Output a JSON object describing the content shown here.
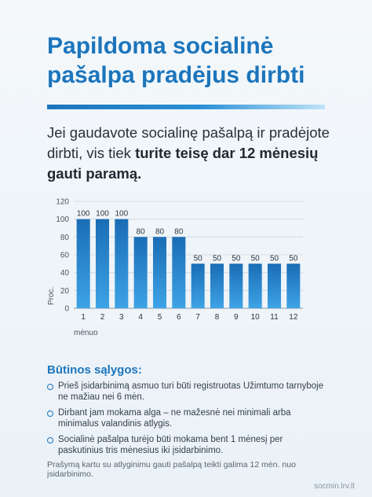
{
  "title_line1": "Papildoma socialinė",
  "title_line2": "pašalpa pradėjus dirbti",
  "intro": {
    "part1": "Jei gaudavote socialinę pašalpą ir pradėjote dirbti, vis tiek ",
    "bold": "turite teisę dar 12 mėnesių gauti paramą."
  },
  "chart_data": {
    "type": "bar",
    "categories": [
      "1",
      "2",
      "3",
      "4",
      "5",
      "6",
      "7",
      "8",
      "9",
      "10",
      "11",
      "12"
    ],
    "values": [
      100,
      100,
      100,
      80,
      80,
      80,
      50,
      50,
      50,
      50,
      50,
      50
    ],
    "xlabel": "mėnuo",
    "ylabel": "Proc.",
    "ylim": [
      0,
      120
    ],
    "yticks": [
      "0",
      "20",
      "40",
      "60",
      "80",
      "100",
      "120"
    ],
    "grid": true,
    "bar_color": "#1c75bc"
  },
  "conditions": {
    "title": "Būtinos sąlygos:",
    "items": [
      "Prieš įsidarbinimą asmuo turi būti registruotas Užimtumo tarnyboje ne mažiau nei 6 mėn.",
      "Dirbant jam mokama alga – ne mažesnė nei minimali arba minimalus valandinis atlygis.",
      "Socialinė pašalpa turėjo būti mokama bent 1 mėnesį per paskutinius tris mėnesius iki įsidarbinimo."
    ]
  },
  "footnote": "Prašymą kartu su atlyginimu gauti pašalpą teikti galima 12 mėn. nuo įsidarbinimo.",
  "site": "socmin.lrv.lt",
  "colors": {
    "accent": "#1c75bc",
    "background": "#eef4f9"
  }
}
